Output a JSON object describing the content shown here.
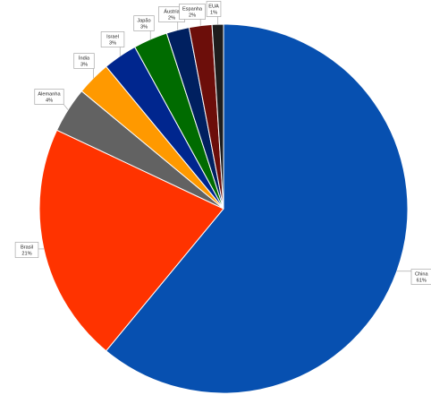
{
  "chart_data": {
    "type": "pie",
    "start": "top",
    "direction": "clockwise",
    "slices": [
      {
        "label": "China",
        "pct_label": "61%",
        "value": 61,
        "color": "#0750B0"
      },
      {
        "label": "Brasil",
        "pct_label": "21%",
        "value": 21,
        "color": "#FF3300"
      },
      {
        "label": "Alemanha",
        "pct_label": "4%",
        "value": 4,
        "color": "#626262"
      },
      {
        "label": "Índia",
        "pct_label": "3%",
        "value": 3,
        "color": "#FF9900"
      },
      {
        "label": "Israel",
        "pct_label": "3%",
        "value": 3,
        "color": "#00268E"
      },
      {
        "label": "Japão",
        "pct_label": "3%",
        "value": 3,
        "color": "#006B00"
      },
      {
        "label": "Áustria",
        "pct_label": "2%",
        "value": 2,
        "color": "#002060"
      },
      {
        "label": "Espanha",
        "pct_label": "2%",
        "value": 2,
        "color": "#6C0E0A"
      },
      {
        "label": "EUA",
        "pct_label": "1%",
        "value": 1,
        "color": "#1D1D1D"
      }
    ]
  }
}
